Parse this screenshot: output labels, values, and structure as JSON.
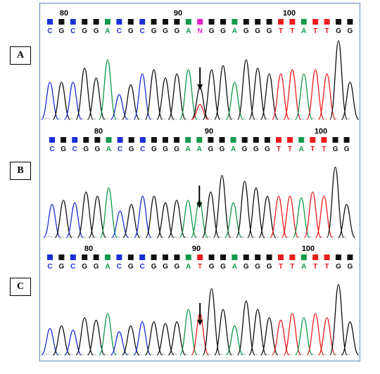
{
  "colors": {
    "A": "#109a4a",
    "C": "#1a2fd8",
    "G": "#111111",
    "T": "#ec1c1c",
    "N": "#e020c8",
    "frame": "#5a86c2"
  },
  "arrow_icon": "down-arrow-icon",
  "panels": [
    {
      "label": "A",
      "positions": [
        "80",
        "90",
        "100"
      ],
      "sequence": [
        "C",
        "G",
        "C",
        "G",
        "G",
        "A",
        "C",
        "G",
        "C",
        "G",
        "G",
        "G",
        "A",
        "N",
        "G",
        "G",
        "A",
        "G",
        "G",
        "G",
        "T",
        "T",
        "A",
        "T",
        "T",
        "G",
        "G"
      ]
    },
    {
      "label": "B",
      "positions": [
        "80",
        "90",
        "100"
      ],
      "sequence": [
        "C",
        "G",
        "C",
        "G",
        "G",
        "A",
        "C",
        "G",
        "C",
        "G",
        "G",
        "G",
        "A",
        "A",
        "G",
        "G",
        "A",
        "G",
        "G",
        "G",
        "T",
        "T",
        "A",
        "T",
        "T",
        "G",
        "G"
      ]
    },
    {
      "label": "C",
      "positions": [
        "80",
        "90",
        "100"
      ],
      "sequence": [
        "C",
        "G",
        "C",
        "G",
        "G",
        "A",
        "C",
        "G",
        "C",
        "G",
        "G",
        "G",
        "A",
        "T",
        "G",
        "G",
        "A",
        "G",
        "G",
        "G",
        "T",
        "T",
        "A",
        "T",
        "T",
        "G",
        "G"
      ]
    }
  ]
}
